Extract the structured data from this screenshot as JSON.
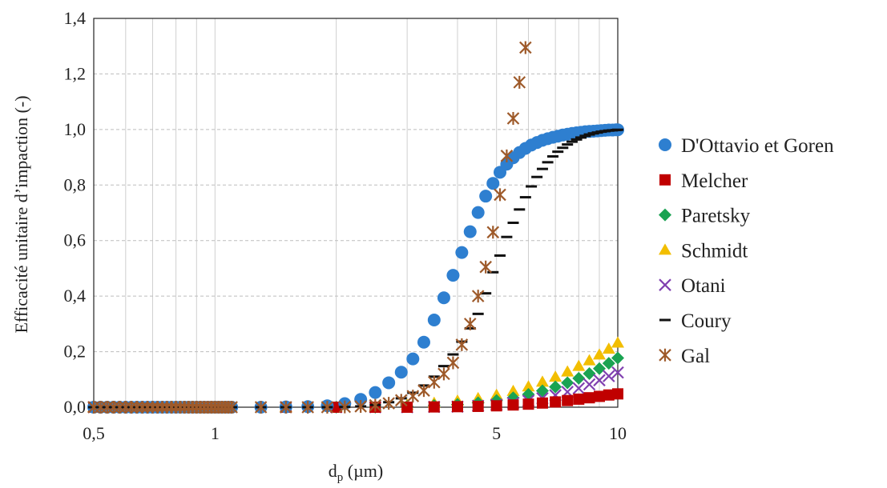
{
  "chart_data": {
    "type": "scatter",
    "x_scale": "log",
    "xlim": [
      0.5,
      10
    ],
    "ylim": [
      0,
      1.4
    ],
    "x_ticks": [
      {
        "value": 0.5,
        "label": "0,5"
      },
      {
        "value": 1,
        "label": "1"
      },
      {
        "value": 5,
        "label": "5"
      },
      {
        "value": 10,
        "label": "10"
      }
    ],
    "y_ticks": [
      {
        "value": 0,
        "label": "0,0"
      },
      {
        "value": 0.2,
        "label": "0,2"
      },
      {
        "value": 0.4,
        "label": "0,4"
      },
      {
        "value": 0.6,
        "label": "0,6"
      },
      {
        "value": 0.8,
        "label": "0,8"
      },
      {
        "value": 1.0,
        "label": "1,0"
      },
      {
        "value": 1.2,
        "label": "1,2"
      },
      {
        "value": 1.4,
        "label": "1,4"
      }
    ],
    "xlabel_main": "d",
    "xlabel_sub": "p",
    "xlabel_unit": " (µm)",
    "ylabel": "Efficacité  unitaire  d’impaction  (-)",
    "grid": "vertical-solid, horizontal-dashed",
    "legend_placement": "right",
    "series": [
      {
        "name": "D'Ottavio et Goren",
        "marker": "circle",
        "color": "#2e7fd0",
        "x": [
          0.5,
          0.52,
          0.54,
          0.56,
          0.58,
          0.6,
          0.62,
          0.64,
          0.66,
          0.68,
          0.7,
          0.72,
          0.74,
          0.76,
          0.78,
          0.8,
          0.82,
          0.84,
          0.86,
          0.88,
          0.9,
          0.92,
          0.94,
          0.96,
          0.98,
          1.0,
          1.02,
          1.04,
          1.06,
          1.08,
          1.1,
          1.3,
          1.5,
          1.7,
          1.9,
          2.1,
          2.3,
          2.5,
          2.7,
          2.9,
          3.1,
          3.3,
          3.5,
          3.7,
          3.9,
          4.1,
          4.3,
          4.5,
          4.7,
          4.9,
          5.1,
          5.3,
          5.5,
          5.7,
          5.9,
          6.1,
          6.3,
          6.5,
          6.7,
          6.9,
          7.1,
          7.3,
          7.5,
          7.7,
          7.9,
          8.1,
          8.3,
          8.5,
          8.7,
          8.9,
          9.1,
          9.3,
          9.5,
          9.7,
          9.9,
          10.0
        ],
        "y": [
          0,
          0,
          0,
          0,
          0,
          0,
          0,
          0,
          0,
          0,
          0,
          0,
          0,
          0,
          0,
          0,
          0,
          0,
          0,
          0,
          0,
          0,
          0,
          0,
          0,
          0,
          0,
          0,
          0,
          0,
          0,
          0,
          0.001,
          0.002,
          0.005,
          0.013,
          0.028,
          0.053,
          0.088,
          0.126,
          0.174,
          0.234,
          0.314,
          0.394,
          0.475,
          0.557,
          0.632,
          0.701,
          0.76,
          0.806,
          0.846,
          0.875,
          0.898,
          0.917,
          0.932,
          0.944,
          0.953,
          0.961,
          0.967,
          0.972,
          0.976,
          0.98,
          0.983,
          0.986,
          0.988,
          0.99,
          0.992,
          0.993,
          0.994,
          0.995,
          0.996,
          0.997,
          0.998,
          0.998,
          0.999,
          0.999
        ]
      },
      {
        "name": "Melcher",
        "marker": "square",
        "color": "#c00000",
        "x": [
          0.5,
          0.7,
          1.0,
          1.5,
          2.0,
          2.5,
          3.0,
          3.5,
          4.0,
          4.5,
          5.0,
          5.5,
          6.0,
          6.5,
          7.0,
          7.5,
          8.0,
          8.5,
          9.0,
          9.5,
          10.0
        ],
        "y": [
          0,
          0,
          0,
          0,
          0,
          0,
          0,
          0.001,
          0.002,
          0.003,
          0.005,
          0.008,
          0.011,
          0.015,
          0.019,
          0.024,
          0.029,
          0.034,
          0.039,
          0.044,
          0.048
        ]
      },
      {
        "name": "Paretsky",
        "marker": "diamond",
        "color": "#1aa352",
        "x": [
          0.5,
          0.7,
          1.0,
          1.5,
          2.0,
          2.5,
          3.0,
          3.5,
          4.0,
          4.5,
          5.0,
          5.5,
          6.0,
          6.5,
          7.0,
          7.5,
          8.0,
          8.5,
          9.0,
          9.5,
          10.0
        ],
        "y": [
          0,
          0,
          0,
          0,
          0,
          0,
          0.003,
          0.006,
          0.01,
          0.016,
          0.024,
          0.034,
          0.046,
          0.059,
          0.073,
          0.088,
          0.104,
          0.121,
          0.139,
          0.158,
          0.177
        ]
      },
      {
        "name": "Schmidt",
        "marker": "triangle",
        "color": "#f2be00",
        "x": [
          0.5,
          0.7,
          1.0,
          1.5,
          2.0,
          2.5,
          3.0,
          3.5,
          4.0,
          4.5,
          5.0,
          5.5,
          6.0,
          6.5,
          7.0,
          7.5,
          8.0,
          8.5,
          9.0,
          9.5,
          10.0
        ],
        "y": [
          0,
          0,
          0,
          0,
          0,
          0.001,
          0.008,
          0.015,
          0.023,
          0.032,
          0.044,
          0.058,
          0.074,
          0.091,
          0.109,
          0.128,
          0.148,
          0.168,
          0.189,
          0.21,
          0.232
        ]
      },
      {
        "name": "Otani",
        "marker": "x",
        "color": "#8040b0",
        "x": [
          0.5,
          0.7,
          1.0,
          1.5,
          2.0,
          2.5,
          3.0,
          3.5,
          4.0,
          4.5,
          5.0,
          5.5,
          6.0,
          6.5,
          7.0,
          7.5,
          8.0,
          8.5,
          9.0,
          9.5,
          10.0
        ],
        "y": [
          0,
          0,
          0,
          0,
          0,
          0,
          0,
          0.001,
          0.002,
          0.005,
          0.009,
          0.015,
          0.023,
          0.032,
          0.043,
          0.055,
          0.068,
          0.082,
          0.097,
          0.112,
          0.125
        ]
      },
      {
        "name": "Coury",
        "marker": "dash",
        "color": "#111111",
        "x": [
          0.5,
          0.52,
          0.54,
          0.56,
          0.58,
          0.6,
          0.62,
          0.64,
          0.66,
          0.68,
          0.7,
          0.72,
          0.74,
          0.76,
          0.78,
          0.8,
          0.82,
          0.84,
          0.86,
          0.88,
          0.9,
          0.92,
          0.94,
          0.96,
          0.98,
          1.0,
          1.02,
          1.04,
          1.06,
          1.08,
          1.1,
          1.3,
          1.5,
          1.7,
          1.9,
          2.1,
          2.3,
          2.5,
          2.7,
          2.9,
          3.1,
          3.3,
          3.5,
          3.7,
          3.9,
          4.1,
          4.3,
          4.5,
          4.7,
          4.9,
          5.1,
          5.3,
          5.5,
          5.7,
          5.9,
          6.1,
          6.3,
          6.5,
          6.7,
          6.9,
          7.1,
          7.3,
          7.5,
          7.7,
          7.9,
          8.1,
          8.3,
          8.5,
          8.7,
          8.9,
          9.1,
          9.3,
          9.5,
          9.7,
          9.9,
          10.0
        ],
        "y": [
          0,
          0,
          0,
          0,
          0,
          0,
          0,
          0,
          0,
          0,
          0,
          0,
          0,
          0,
          0,
          0,
          0,
          0,
          0,
          0,
          0,
          0,
          0,
          0,
          0,
          0,
          0,
          0,
          0,
          0,
          0,
          0,
          0,
          0,
          0,
          0.001,
          0.003,
          0.008,
          0.018,
          0.032,
          0.052,
          0.078,
          0.11,
          0.148,
          0.19,
          0.236,
          0.284,
          0.336,
          0.41,
          0.486,
          0.546,
          0.613,
          0.664,
          0.712,
          0.756,
          0.795,
          0.829,
          0.858,
          0.882,
          0.903,
          0.92,
          0.934,
          0.946,
          0.956,
          0.964,
          0.971,
          0.977,
          0.982,
          0.986,
          0.989,
          0.992,
          0.994,
          0.996,
          0.997,
          0.998,
          0.999
        ]
      },
      {
        "name": "Gal",
        "marker": "asterisk",
        "color": "#9e5a2a",
        "x": [
          0.5,
          0.52,
          0.54,
          0.56,
          0.58,
          0.6,
          0.62,
          0.64,
          0.66,
          0.68,
          0.7,
          0.72,
          0.74,
          0.76,
          0.78,
          0.8,
          0.82,
          0.84,
          0.86,
          0.88,
          0.9,
          0.92,
          0.94,
          0.96,
          0.98,
          1.0,
          1.02,
          1.04,
          1.06,
          1.08,
          1.1,
          1.3,
          1.5,
          1.7,
          1.9,
          2.1,
          2.3,
          2.5,
          2.7,
          2.9,
          3.1,
          3.3,
          3.5,
          3.7,
          3.9,
          4.1,
          4.3,
          4.5,
          4.7,
          4.9,
          5.1,
          5.3,
          5.5,
          5.7,
          5.9
        ],
        "y": [
          0,
          0,
          0,
          0,
          0,
          0,
          0,
          0,
          0,
          0,
          0,
          0,
          0,
          0,
          0,
          0,
          0,
          0,
          0,
          0,
          0,
          0,
          0,
          0,
          0,
          0,
          0,
          0,
          0,
          0,
          0,
          0,
          0,
          0,
          0,
          0.001,
          0.003,
          0.007,
          0.014,
          0.025,
          0.04,
          0.06,
          0.09,
          0.12,
          0.16,
          0.225,
          0.3,
          0.4,
          0.505,
          0.63,
          0.765,
          0.905,
          1.04,
          1.17,
          1.295
        ]
      }
    ]
  }
}
